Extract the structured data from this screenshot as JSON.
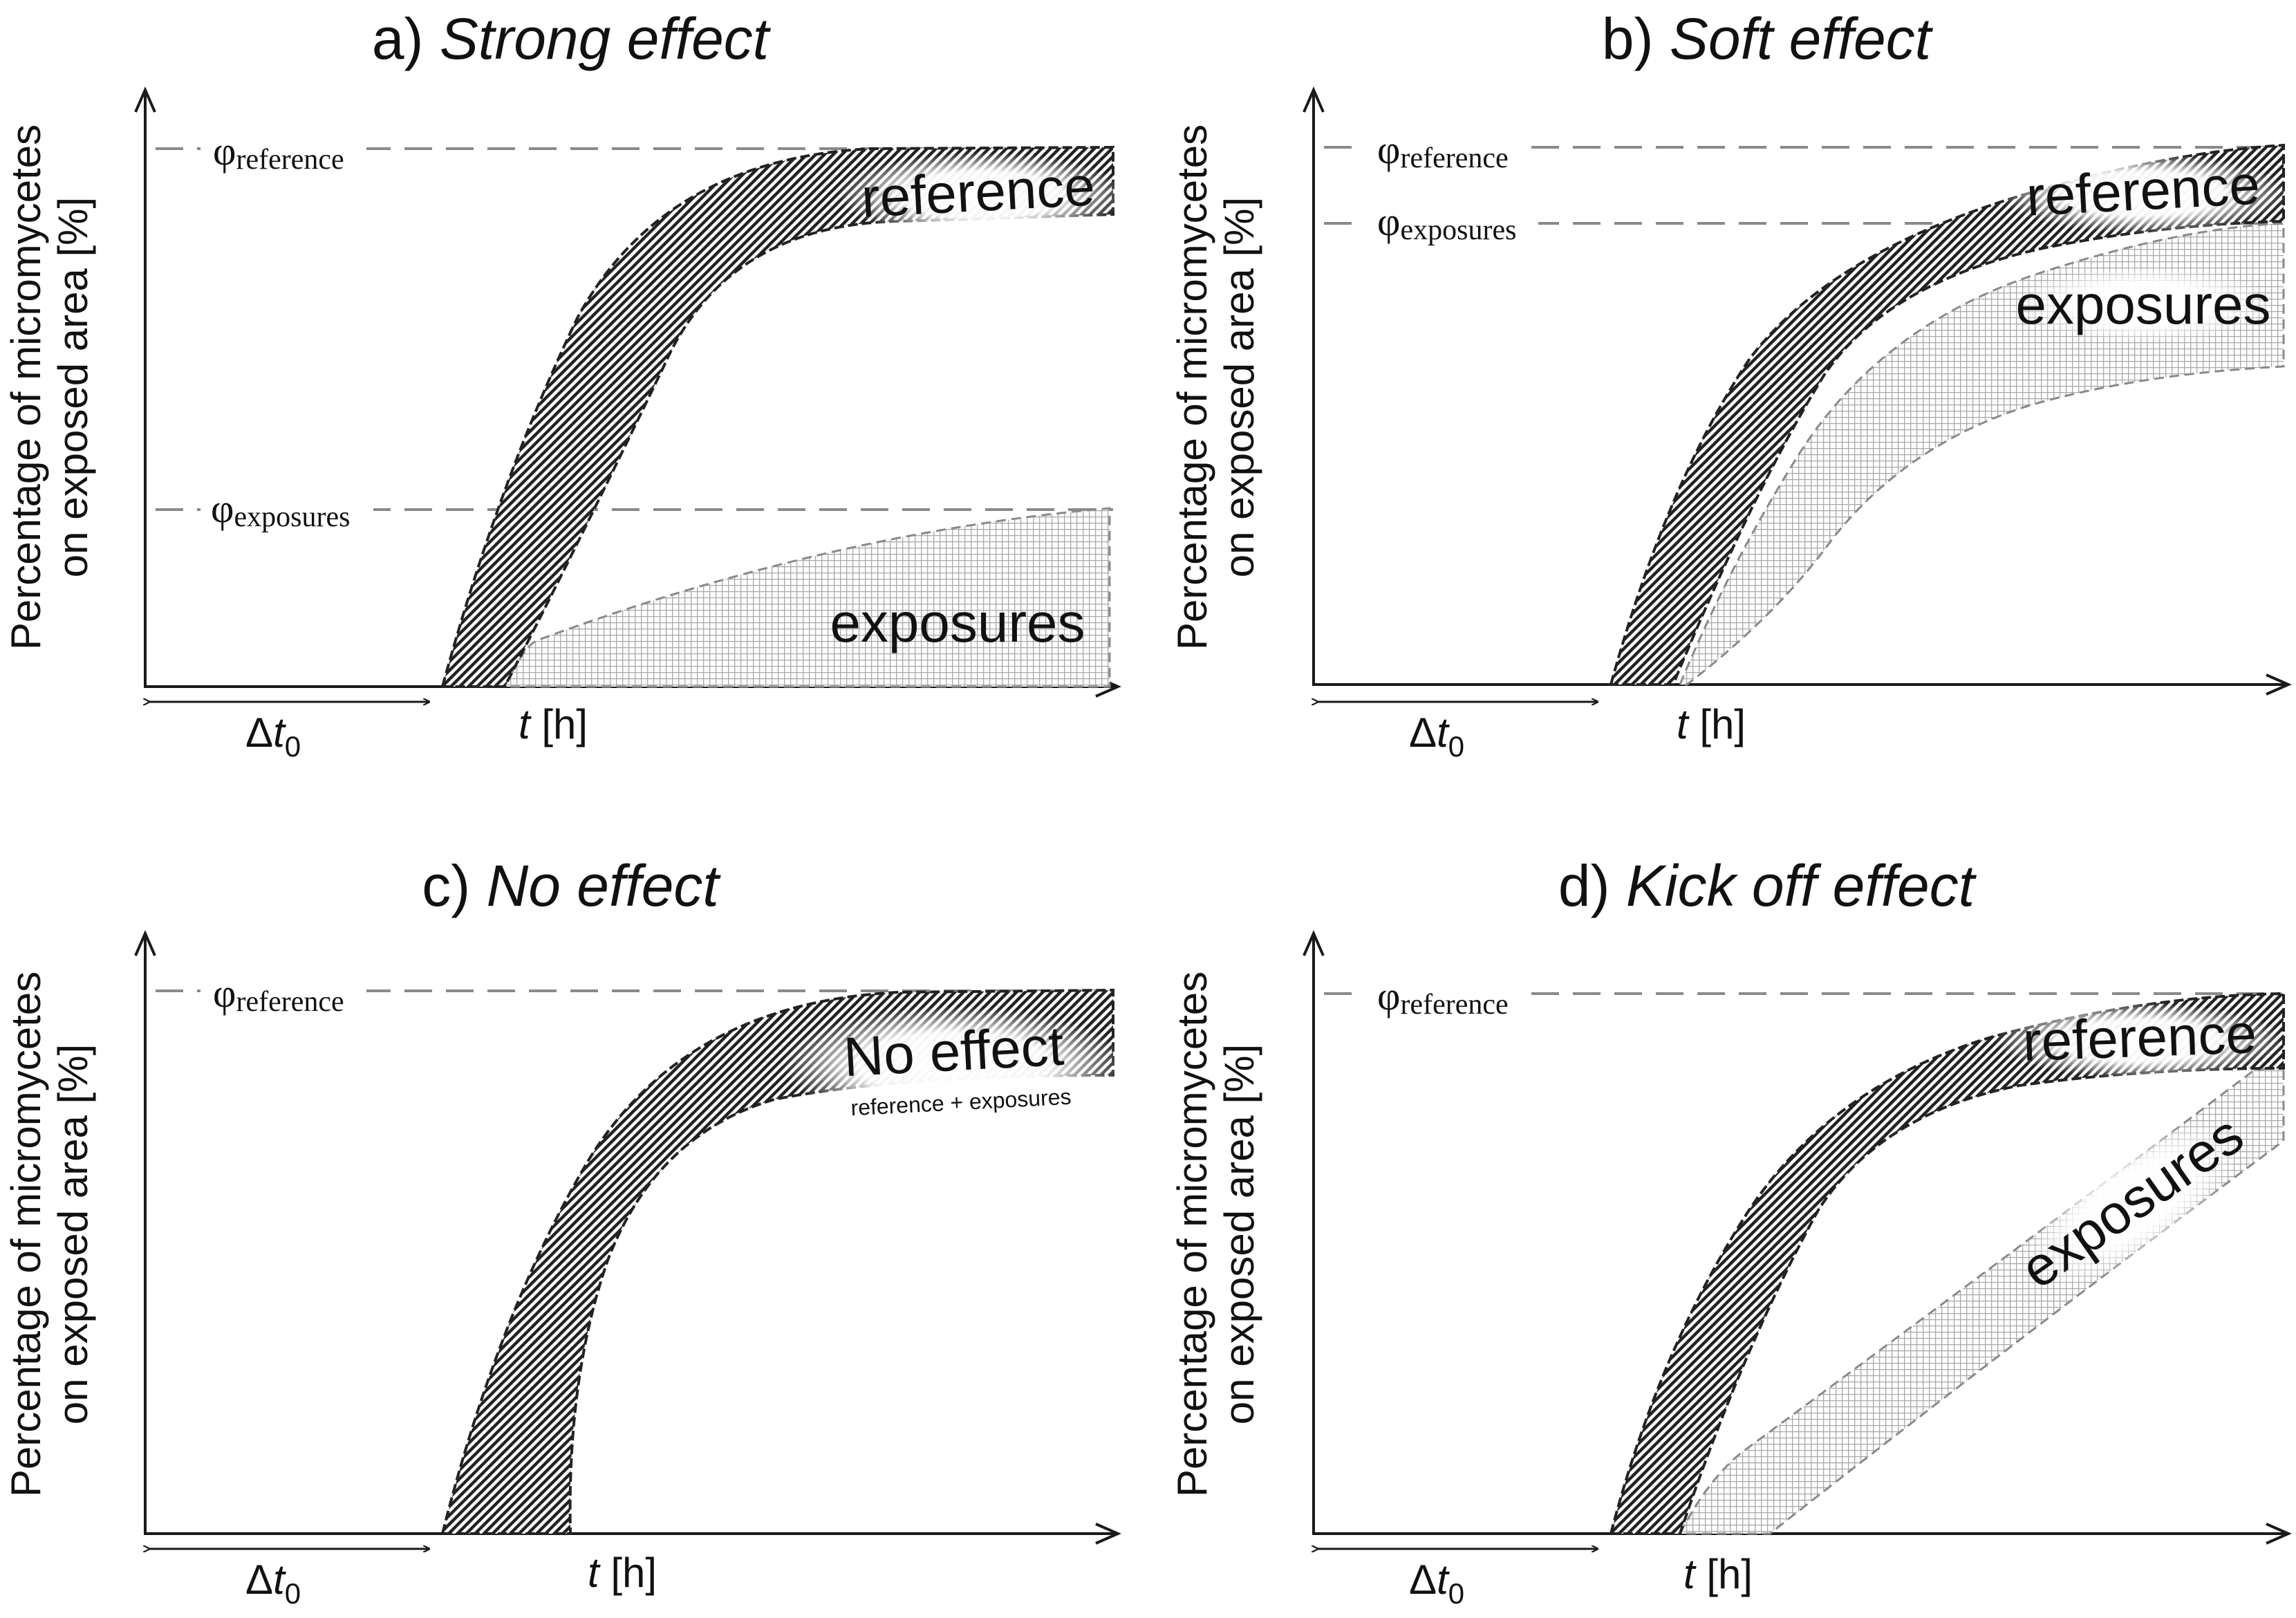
{
  "figure": {
    "y_axis_label_line1": "Percentage of micromycetes",
    "y_axis_label_line2": "on exposed area [%]",
    "x_axis_var": "t",
    "x_axis_unit": " [h]",
    "delta_symbol": "Δ",
    "delta_var": "t",
    "delta_sub": "0",
    "phi": "φ",
    "ref_sub": "reference",
    "exp_sub": "exposures"
  },
  "panels": [
    {
      "id": "a",
      "prefix": "a)",
      "title": "Strong effect",
      "band_labels": [
        "reference",
        "exposures"
      ],
      "phi_lines": [
        "reference",
        "exposures"
      ]
    },
    {
      "id": "b",
      "prefix": "b)",
      "title": "Soft effect",
      "band_labels": [
        "reference",
        "exposures"
      ],
      "phi_lines": [
        "reference",
        "exposures"
      ]
    },
    {
      "id": "c",
      "prefix": "c)",
      "title": "No effect",
      "band_labels": [
        "No effect",
        "reference + exposures"
      ],
      "phi_lines": [
        "reference"
      ]
    },
    {
      "id": "d",
      "prefix": "d)",
      "title": "Kick off effect",
      "band_labels": [
        "reference",
        "exposures"
      ],
      "phi_lines": [
        "reference"
      ]
    }
  ],
  "colors": {
    "axis": "#1a1a1a",
    "dashed": "#8a8a8a",
    "hatch": "#222222",
    "grid": "#b0b0b0",
    "text": "#111111"
  }
}
